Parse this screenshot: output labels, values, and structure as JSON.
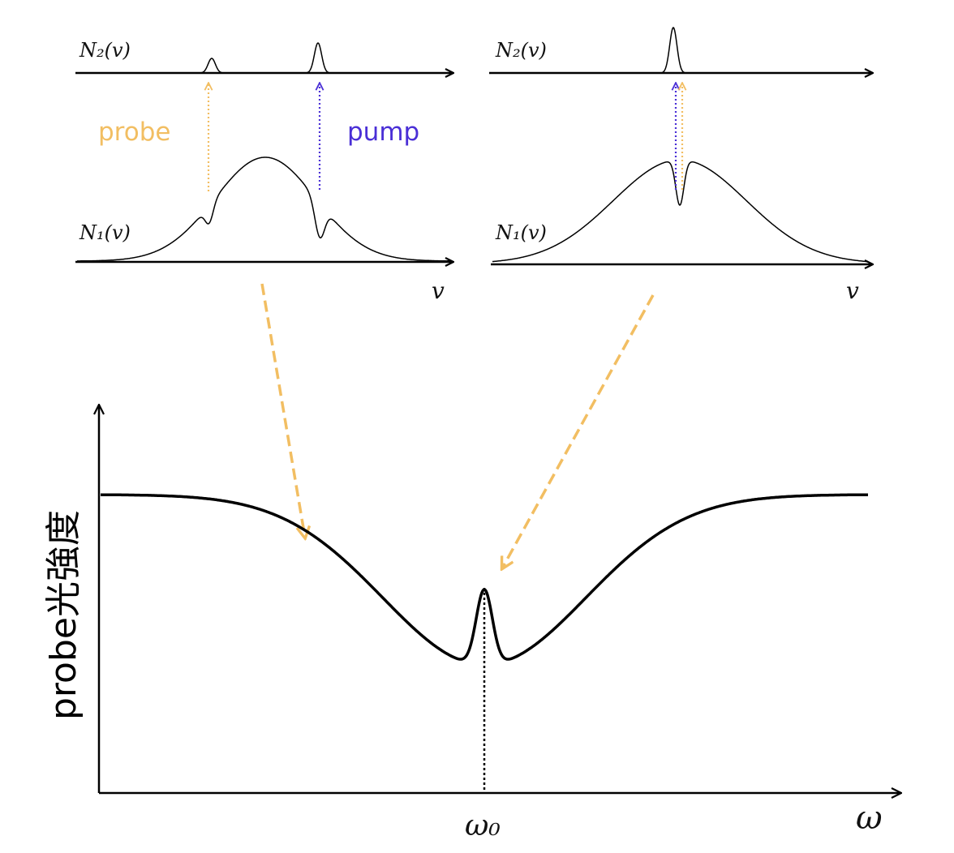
{
  "colors": {
    "probe": "#f2be62",
    "pump": "#4a2fd6",
    "curve": "#000000"
  },
  "panels": {
    "left": {
      "upper_level": "N₂(v)",
      "lower_level": "N₁(v)",
      "axis": "v",
      "probe_label": "probe",
      "pump_label": "pump"
    },
    "right": {
      "upper_level": "N₂(v)",
      "lower_level": "N₁(v)",
      "axis": "v"
    }
  },
  "spectrum": {
    "ylabel": "probe光強度",
    "xlabel": "ω",
    "center_label": "ω₀"
  }
}
